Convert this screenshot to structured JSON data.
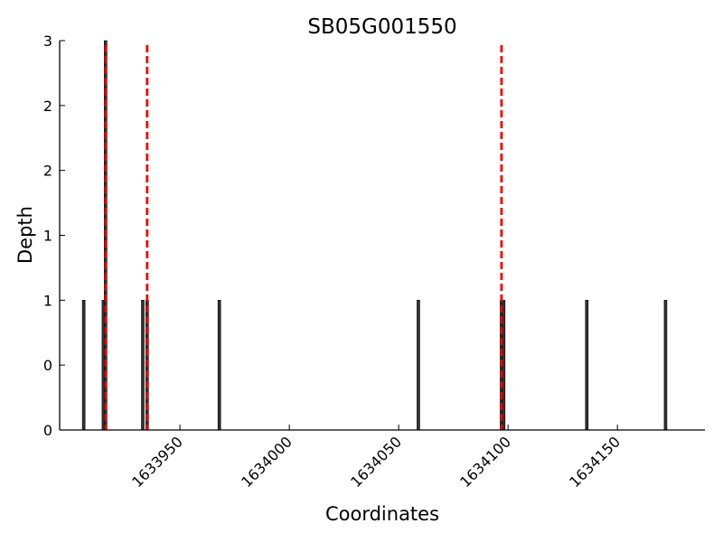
{
  "chart_data": {
    "type": "bar",
    "title": "SB05G001550",
    "xlabel": "Coordinates",
    "ylabel": "Depth",
    "xlim": [
      1633895,
      1634190
    ],
    "ylim": [
      0,
      3
    ],
    "x_ticks": [
      1633950,
      1634000,
      1634050,
      1634100,
      1634150
    ],
    "y_tick_values": [
      0,
      0.5,
      1,
      1.5,
      2,
      2.5,
      3
    ],
    "y_tick_labels": [
      "0",
      "0",
      "1",
      "1",
      "2",
      "2",
      "3"
    ],
    "grid": false,
    "legend": "none",
    "series": [
      {
        "x": [
          1633906,
          1633915,
          1633916,
          1633933,
          1633935,
          1633968,
          1634059,
          1634097,
          1634098,
          1634136,
          1634172
        ],
        "values": [
          1,
          1,
          3,
          1,
          1,
          1,
          1,
          1,
          1,
          1,
          1
        ]
      }
    ],
    "vlines": [
      1633916,
      1633935,
      1634097
    ],
    "colors": {
      "bar": "#333333",
      "bar_edge": "#000000",
      "vline": "#ee0000",
      "axis": "#000000"
    }
  }
}
